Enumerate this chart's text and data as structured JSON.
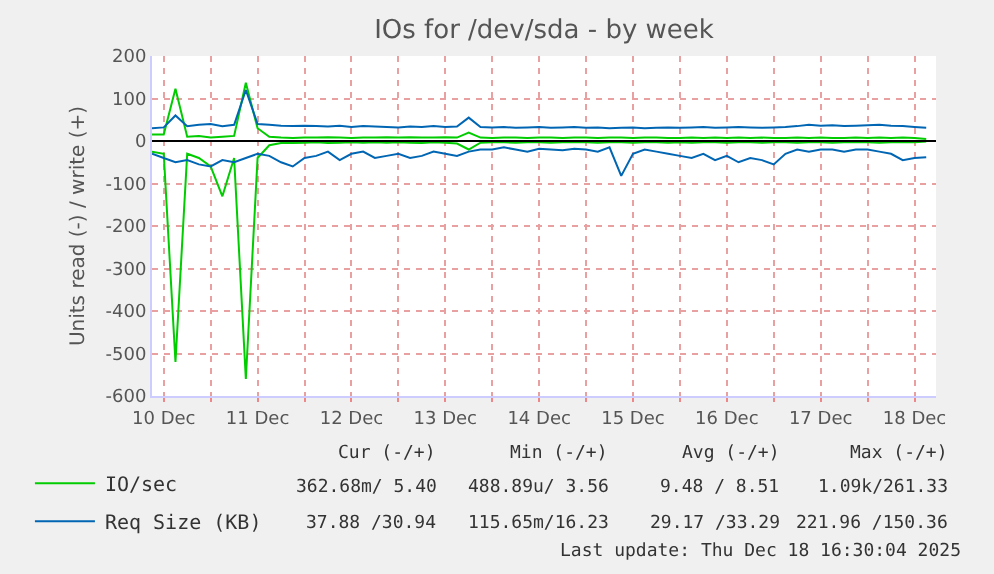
{
  "chart_data": {
    "type": "line",
    "title": "IOs for /dev/sda - by week",
    "ylabel": "Units read (-) / write (+)",
    "x": [
      "2025-12-10T09:00",
      "2025-12-10T12:00",
      "2025-12-10T15:00",
      "2025-12-10T18:00",
      "2025-12-10T21:00",
      "2025-12-11T00:00",
      "2025-12-11T03:00",
      "2025-12-11T06:00",
      "2025-12-11T09:00",
      "2025-12-11T12:00",
      "2025-12-11T15:00",
      "2025-12-11T18:00",
      "2025-12-11T21:00",
      "2025-12-12T00:00",
      "2025-12-12T03:00",
      "2025-12-12T06:00",
      "2025-12-12T09:00",
      "2025-12-12T12:00",
      "2025-12-12T15:00",
      "2025-12-12T18:00",
      "2025-12-12T21:00",
      "2025-12-13T00:00",
      "2025-12-13T03:00",
      "2025-12-13T06:00",
      "2025-12-13T09:00",
      "2025-12-13T12:00",
      "2025-12-13T15:00",
      "2025-12-13T18:00",
      "2025-12-13T21:00",
      "2025-12-14T00:00",
      "2025-12-14T03:00",
      "2025-12-14T06:00",
      "2025-12-14T09:00",
      "2025-12-14T12:00",
      "2025-12-14T15:00",
      "2025-12-14T18:00",
      "2025-12-14T21:00",
      "2025-12-15T00:00",
      "2025-12-15T03:00",
      "2025-12-15T06:00",
      "2025-12-15T09:00",
      "2025-12-15T12:00",
      "2025-12-15T15:00",
      "2025-12-15T18:00",
      "2025-12-15T21:00",
      "2025-12-16T00:00",
      "2025-12-16T03:00",
      "2025-12-16T06:00",
      "2025-12-16T09:00",
      "2025-12-16T12:00",
      "2025-12-16T15:00",
      "2025-12-16T18:00",
      "2025-12-16T21:00",
      "2025-12-17T00:00",
      "2025-12-17T03:00",
      "2025-12-17T06:00",
      "2025-12-17T09:00",
      "2025-12-17T12:00",
      "2025-12-17T15:00",
      "2025-12-17T18:00",
      "2025-12-17T21:00",
      "2025-12-18T00:00",
      "2025-12-18T03:00",
      "2025-12-18T06:00",
      "2025-12-18T09:00",
      "2025-12-18T12:00",
      "2025-12-18T15:00"
    ],
    "series": [
      {
        "name": "IO/sec",
        "color": "#00cc00",
        "values": [
          15,
          15,
          123,
          10,
          12,
          8,
          10,
          12,
          137,
          30,
          10,
          8,
          7,
          8,
          8,
          9,
          8,
          7,
          8,
          8,
          9,
          8,
          9,
          8,
          8,
          9,
          8,
          20,
          8,
          7,
          8,
          8,
          7,
          8,
          8,
          7,
          8,
          8,
          7,
          8,
          8,
          7,
          8,
          8,
          7,
          7,
          8,
          7,
          8,
          7,
          8,
          7,
          8,
          7,
          7,
          8,
          7,
          8,
          7,
          7,
          8,
          7,
          8,
          7,
          8,
          7,
          5
        ]
      },
      {
        "color": "#00cc00",
        "values": [
          -25,
          -30,
          -520,
          -30,
          -40,
          -60,
          -130,
          -40,
          -560,
          -40,
          -10,
          -5,
          -5,
          -4,
          -3,
          -5,
          -4,
          -3,
          -4,
          -3,
          -4,
          -3,
          -4,
          -5,
          -3,
          -4,
          -6,
          -20,
          -4,
          -3,
          -3,
          -4,
          -3,
          -3,
          -4,
          -3,
          -3,
          -3,
          -4,
          -3,
          -3,
          -4,
          -3,
          -3,
          -4,
          -3,
          -4,
          -3,
          -3,
          -4,
          -3,
          -3,
          -4,
          -3,
          -3,
          -4,
          -3,
          -3,
          -4,
          -3,
          -3,
          -3,
          -4,
          -3,
          -3,
          -3,
          -1
        ]
      },
      {
        "name": "Req Size (KB)",
        "color": "#0066b3",
        "values": [
          30,
          32,
          60,
          35,
          38,
          40,
          35,
          38,
          120,
          40,
          38,
          36,
          35,
          36,
          35,
          34,
          36,
          33,
          35,
          34,
          33,
          32,
          34,
          33,
          35,
          33,
          34,
          55,
          33,
          32,
          33,
          31,
          32,
          33,
          31,
          32,
          33,
          31,
          32,
          30,
          31,
          32,
          30,
          31,
          32,
          31,
          32,
          33,
          31,
          32,
          33,
          32,
          31,
          32,
          33,
          35,
          38,
          36,
          37,
          35,
          36,
          37,
          38,
          36,
          35,
          33,
          31
        ]
      },
      {
        "color": "#0066b3",
        "values": [
          -30,
          -40,
          -50,
          -45,
          -55,
          -60,
          -45,
          -50,
          -40,
          -30,
          -35,
          -50,
          -60,
          -40,
          -35,
          -25,
          -45,
          -30,
          -25,
          -40,
          -35,
          -30,
          -40,
          -35,
          -25,
          -30,
          -35,
          -25,
          -20,
          -20,
          -15,
          -20,
          -25,
          -18,
          -20,
          -22,
          -18,
          -20,
          -25,
          -15,
          -82,
          -30,
          -20,
          -25,
          -30,
          -35,
          -40,
          -30,
          -45,
          -35,
          -50,
          -40,
          -45,
          -55,
          -30,
          -20,
          -25,
          -20,
          -20,
          -25,
          -20,
          -20,
          -25,
          -30,
          -45,
          -40,
          -38
        ]
      }
    ],
    "xlim": [
      "2025-12-10T09:00",
      "2025-12-18T17:30"
    ],
    "xticks": [
      {
        "value": "2025-12-10T12:00",
        "label": "10 Dec"
      },
      {
        "value": "2025-12-11T00:00",
        "label": null
      },
      {
        "value": "2025-12-11T12:00",
        "label": "11 Dec"
      },
      {
        "value": "2025-12-12T00:00",
        "label": null
      },
      {
        "value": "2025-12-12T12:00",
        "label": "12 Dec"
      },
      {
        "value": "2025-12-13T00:00",
        "label": null
      },
      {
        "value": "2025-12-13T12:00",
        "label": "13 Dec"
      },
      {
        "value": "2025-12-14T00:00",
        "label": null
      },
      {
        "value": "2025-12-14T12:00",
        "label": "14 Dec"
      },
      {
        "value": "2025-12-15T00:00",
        "label": null
      },
      {
        "value": "2025-12-15T12:00",
        "label": "15 Dec"
      },
      {
        "value": "2025-12-16T00:00",
        "label": null
      },
      {
        "value": "2025-12-16T12:00",
        "label": "16 Dec"
      },
      {
        "value": "2025-12-17T00:00",
        "label": null
      },
      {
        "value": "2025-12-17T12:00",
        "label": "17 Dec"
      },
      {
        "value": "2025-12-18T00:00",
        "label": null
      },
      {
        "value": "2025-12-18T12:00",
        "label": "18 Dec"
      }
    ],
    "ylim": [
      -600,
      200
    ],
    "yticks": [
      -600,
      -500,
      -400,
      -300,
      -200,
      -100,
      0,
      100,
      200
    ],
    "grid": true,
    "legend": "bottom left",
    "line_style": "solid",
    "marker": "none",
    "ref_lines": [
      {
        "axis": "y",
        "value": 0,
        "color": "#000000"
      }
    ],
    "annotations": [
      "Cur (-/+)",
      "Min (-/+)",
      "Avg (-/+)",
      "Max (-/+)",
      "362.68m/ 5.40",
      "488.89u/ 3.56",
      "9.48 / 8.51",
      "1.09k/261.33",
      "37.88 /30.94",
      "115.65m/16.23",
      "29.17 /33.29",
      "221.96 /150.36",
      "Last update: Thu Dec 18 16:30:04 2025"
    ]
  }
}
